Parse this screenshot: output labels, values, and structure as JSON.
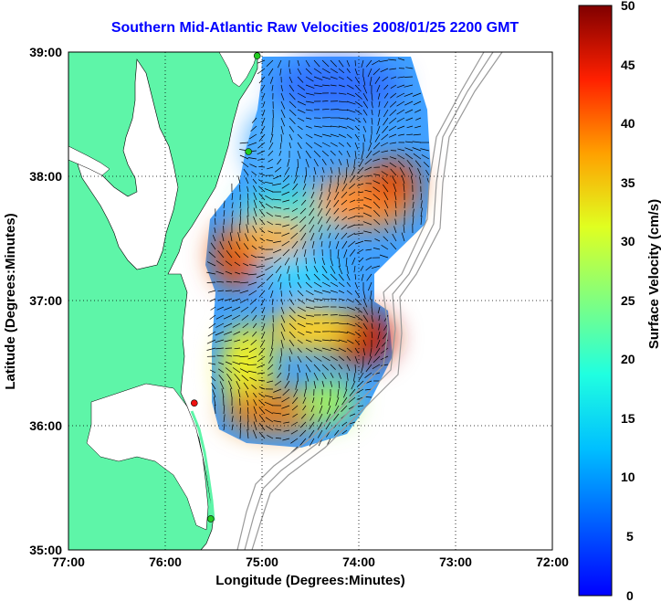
{
  "title": "Southern Mid-Atlantic Raw Velocities 2008/01/25 2200 GMT",
  "x_axis": {
    "label": "Longitude (Degrees:Minutes)",
    "ticks": [
      "77:00",
      "76:00",
      "75:00",
      "74:00",
      "73:00",
      "72:00"
    ]
  },
  "y_axis": {
    "label": "Latitude (Degrees:Minutes)",
    "ticks": [
      "39:00",
      "38:00",
      "37:00",
      "36:00",
      "35:00"
    ]
  },
  "colorbar": {
    "label": "Surface Velocity (cm/s)",
    "ticks": [
      "50",
      "45",
      "40",
      "35",
      "30",
      "25",
      "20",
      "15",
      "10",
      "5",
      "0"
    ],
    "min": 0,
    "max": 50,
    "colormap": "jet"
  },
  "colors": {
    "land": "#5ef5a8",
    "water": "#ffffff",
    "title": "#0000ff",
    "site_active": "#22cc22",
    "site_alert": "#ee1111"
  },
  "map": {
    "lon_range": [
      -77,
      -72
    ],
    "lat_range": [
      35,
      39
    ],
    "grid": "dotted",
    "hf_radar_sites": [
      {
        "lon": -75.05,
        "lat": 38.97,
        "status": "active"
      },
      {
        "lon": -75.14,
        "lat": 38.2,
        "status": "active"
      },
      {
        "lon": -75.7,
        "lat": 36.18,
        "status": "alert"
      },
      {
        "lon": -75.53,
        "lat": 35.25,
        "status": "active"
      }
    ]
  }
}
